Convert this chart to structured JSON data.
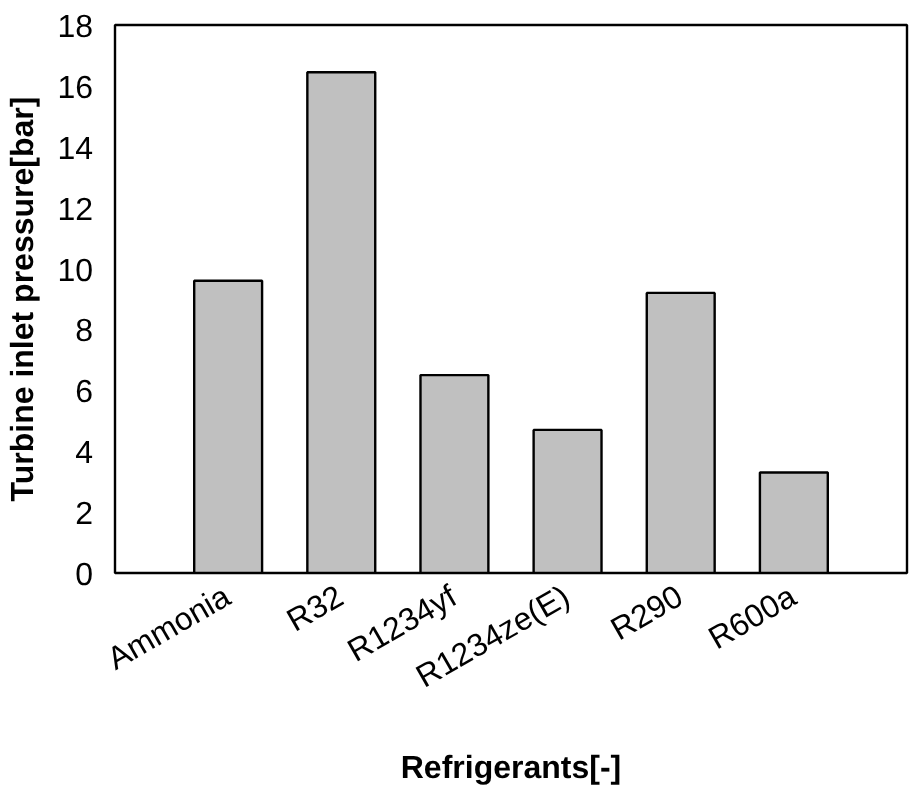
{
  "chart_data": {
    "type": "bar",
    "xlabel": "Refrigerants[-]",
    "ylabel": "Turbine inlet pressure[bar]",
    "categories": [
      "Ammonia",
      "R32",
      "R1234yf",
      "R1234ze(E)",
      "R290",
      "R600a"
    ],
    "values": [
      9.6,
      16.45,
      6.5,
      4.7,
      9.2,
      3.3
    ],
    "color": "#c0c0c0",
    "ylim": [
      0,
      18
    ],
    "yticks": [
      0,
      2,
      4,
      6,
      8,
      10,
      12,
      14,
      16,
      18
    ],
    "grid": false
  }
}
